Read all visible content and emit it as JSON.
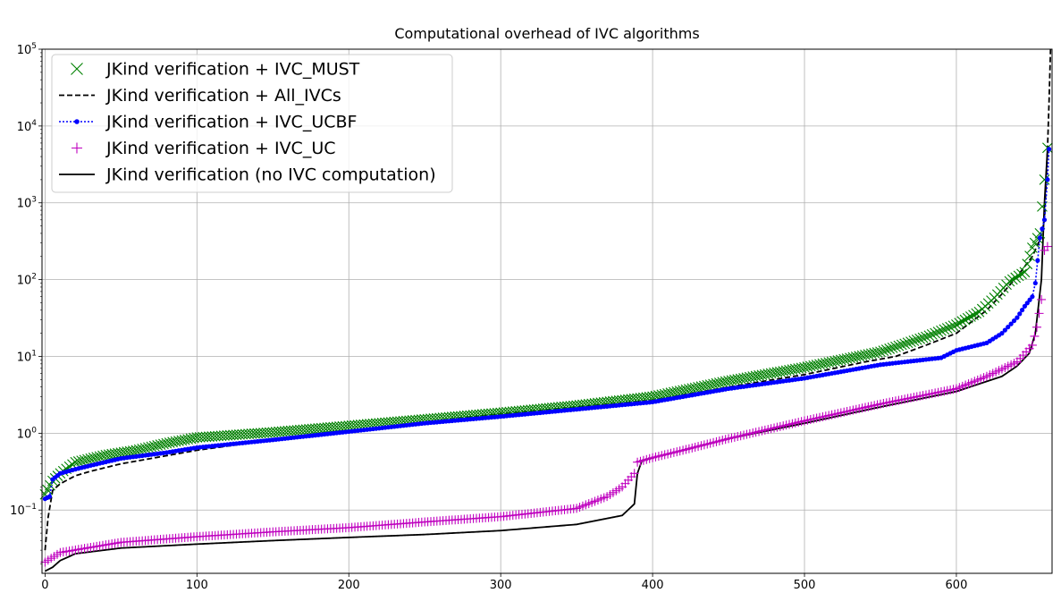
{
  "chart_data": {
    "type": "line",
    "title": "Computational overhead of IVC algorithms",
    "xlabel": "",
    "ylabel": "",
    "yscale": "log",
    "xlim": [
      -2,
      663
    ],
    "ylim": [
      0.015,
      100000
    ],
    "grid": true,
    "legend_position": "top-left",
    "x_ticks": [
      0,
      100,
      200,
      300,
      400,
      500,
      600
    ],
    "x_tick_labels": [
      "0",
      "100",
      "200",
      "300",
      "400",
      "500",
      "600"
    ],
    "y_ticks": [
      0.1,
      1,
      10,
      100,
      1000,
      10000,
      100000
    ],
    "y_tick_bases": [
      "10",
      "10",
      "10",
      "10",
      "10",
      "10",
      "10"
    ],
    "y_tick_exponents": [
      "−1",
      "0",
      "1",
      "2",
      "3",
      "4",
      "5"
    ],
    "series": [
      {
        "name": "JKind verification + IVC_MUST",
        "style": "marker-x",
        "color": "#008000",
        "points": [
          [
            0,
            0.16
          ],
          [
            5,
            0.24
          ],
          [
            10,
            0.3
          ],
          [
            20,
            0.42
          ],
          [
            40,
            0.52
          ],
          [
            60,
            0.6
          ],
          [
            80,
            0.74
          ],
          [
            100,
            0.88
          ],
          [
            150,
            1.03
          ],
          [
            200,
            1.25
          ],
          [
            250,
            1.52
          ],
          [
            300,
            1.85
          ],
          [
            350,
            2.3
          ],
          [
            400,
            3.0
          ],
          [
            450,
            4.8
          ],
          [
            500,
            7.2
          ],
          [
            550,
            11.5
          ],
          [
            580,
            18
          ],
          [
            600,
            26
          ],
          [
            615,
            38
          ],
          [
            625,
            58
          ],
          [
            635,
            95
          ],
          [
            645,
            125
          ],
          [
            650,
            260
          ],
          [
            655,
            400
          ],
          [
            658,
            2000
          ],
          [
            660,
            5200
          ]
        ]
      },
      {
        "name": "JKind verification + All_IVCs",
        "style": "dashed",
        "color": "#000000",
        "points": [
          [
            0,
            0.03
          ],
          [
            2,
            0.08
          ],
          [
            5,
            0.18
          ],
          [
            10,
            0.22
          ],
          [
            20,
            0.28
          ],
          [
            30,
            0.32
          ],
          [
            50,
            0.4
          ],
          [
            70,
            0.47
          ],
          [
            100,
            0.6
          ],
          [
            150,
            0.82
          ],
          [
            200,
            1.05
          ],
          [
            250,
            1.4
          ],
          [
            300,
            1.8
          ],
          [
            350,
            2.2
          ],
          [
            400,
            2.7
          ],
          [
            450,
            4.0
          ],
          [
            500,
            5.8
          ],
          [
            540,
            8.5
          ],
          [
            560,
            10
          ],
          [
            580,
            14
          ],
          [
            600,
            20
          ],
          [
            620,
            40
          ],
          [
            630,
            65
          ],
          [
            640,
            110
          ],
          [
            650,
            200
          ],
          [
            655,
            330
          ],
          [
            658,
            600
          ],
          [
            660,
            5000
          ],
          [
            661,
            20000
          ],
          [
            662,
            100000
          ]
        ]
      },
      {
        "name": "JKind verification + IVC_UCBF",
        "style": "dotted-dot",
        "color": "#0000ff",
        "points": [
          [
            0,
            0.14
          ],
          [
            3,
            0.15
          ],
          [
            5,
            0.25
          ],
          [
            10,
            0.3
          ],
          [
            20,
            0.34
          ],
          [
            30,
            0.38
          ],
          [
            50,
            0.47
          ],
          [
            80,
            0.56
          ],
          [
            100,
            0.65
          ],
          [
            150,
            0.82
          ],
          [
            200,
            1.05
          ],
          [
            250,
            1.35
          ],
          [
            300,
            1.65
          ],
          [
            350,
            2.05
          ],
          [
            400,
            2.55
          ],
          [
            450,
            3.8
          ],
          [
            500,
            5.2
          ],
          [
            550,
            7.8
          ],
          [
            590,
            9.6
          ],
          [
            600,
            12
          ],
          [
            620,
            15
          ],
          [
            630,
            20
          ],
          [
            640,
            32
          ],
          [
            645,
            45
          ],
          [
            650,
            60
          ],
          [
            652,
            90
          ],
          [
            655,
            350
          ],
          [
            658,
            600
          ],
          [
            660,
            2000
          ],
          [
            661,
            5000
          ]
        ]
      },
      {
        "name": "JKind verification + IVC_UC",
        "style": "marker-plus",
        "color": "#bf00bf",
        "points": [
          [
            0,
            0.021
          ],
          [
            10,
            0.028
          ],
          [
            50,
            0.038
          ],
          [
            100,
            0.045
          ],
          [
            150,
            0.052
          ],
          [
            200,
            0.059
          ],
          [
            250,
            0.07
          ],
          [
            300,
            0.082
          ],
          [
            350,
            0.105
          ],
          [
            370,
            0.15
          ],
          [
            380,
            0.2
          ],
          [
            388,
            0.3
          ],
          [
            390,
            0.42
          ],
          [
            400,
            0.48
          ],
          [
            420,
            0.6
          ],
          [
            450,
            0.85
          ],
          [
            500,
            1.45
          ],
          [
            550,
            2.4
          ],
          [
            600,
            3.8
          ],
          [
            620,
            5.5
          ],
          [
            640,
            8.5
          ],
          [
            650,
            14
          ],
          [
            653,
            24
          ],
          [
            656,
            55
          ],
          [
            658,
            240
          ],
          [
            660,
            270
          ]
        ]
      },
      {
        "name": "JKind verification (no IVC computation)",
        "style": "solid",
        "color": "#000000",
        "points": [
          [
            0,
            0.016
          ],
          [
            5,
            0.018
          ],
          [
            10,
            0.022
          ],
          [
            20,
            0.027
          ],
          [
            50,
            0.032
          ],
          [
            100,
            0.036
          ],
          [
            150,
            0.04
          ],
          [
            200,
            0.044
          ],
          [
            250,
            0.048
          ],
          [
            300,
            0.054
          ],
          [
            350,
            0.065
          ],
          [
            380,
            0.085
          ],
          [
            388,
            0.12
          ],
          [
            390,
            0.3
          ],
          [
            393,
            0.44
          ],
          [
            400,
            0.48
          ],
          [
            420,
            0.6
          ],
          [
            450,
            0.85
          ],
          [
            500,
            1.35
          ],
          [
            550,
            2.2
          ],
          [
            600,
            3.5
          ],
          [
            630,
            5.5
          ],
          [
            640,
            7.5
          ],
          [
            648,
            11
          ],
          [
            652,
            20
          ],
          [
            656,
            100
          ],
          [
            658,
            1000
          ],
          [
            660,
            5000
          ]
        ]
      }
    ]
  }
}
